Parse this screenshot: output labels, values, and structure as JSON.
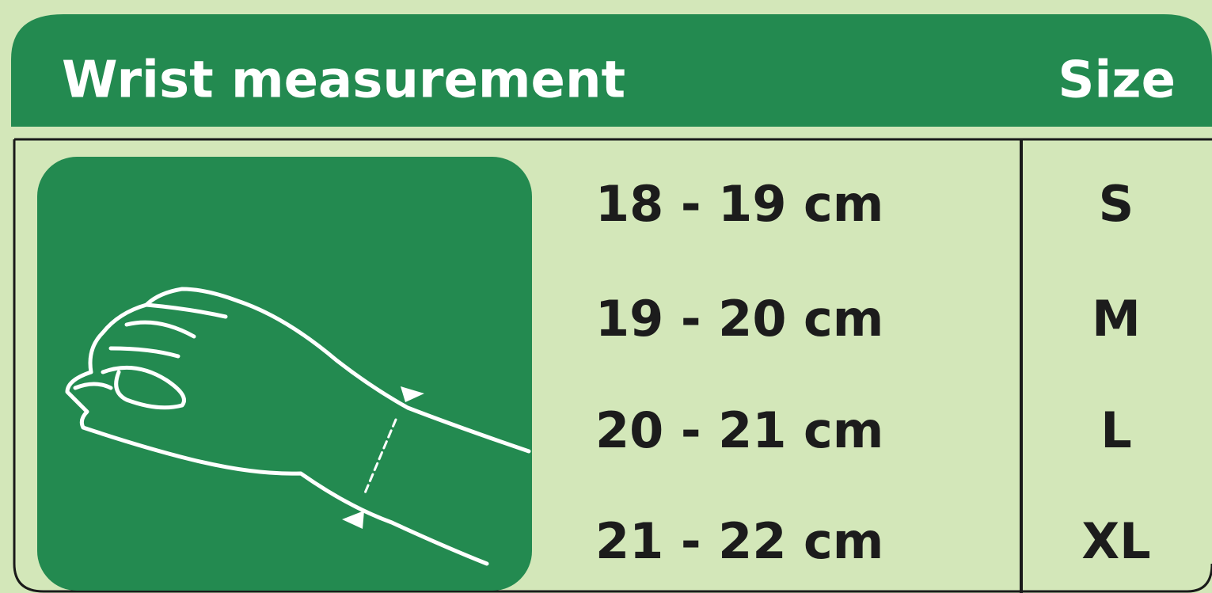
{
  "header": {
    "columns": [
      "Wrist measurement",
      "Size"
    ]
  },
  "table": {
    "rows": [
      [
        "18 - 19 cm",
        "S"
      ],
      [
        "19 - 20 cm",
        "M"
      ],
      [
        "20 - 21 cm",
        "L"
      ],
      [
        "21 - 22 cm",
        "XL"
      ]
    ]
  }
}
